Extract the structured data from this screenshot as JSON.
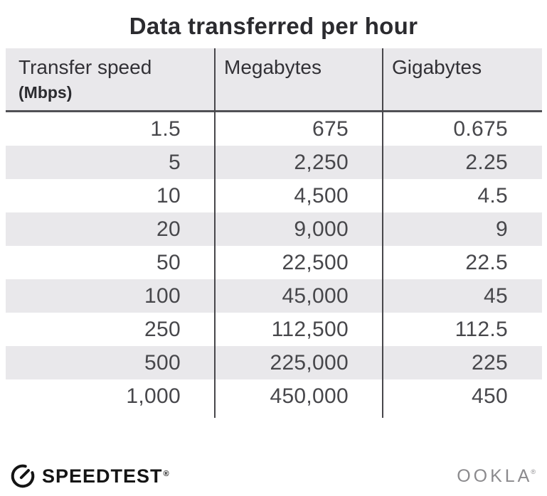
{
  "title": "Data transferred per hour",
  "table": {
    "columns": [
      {
        "label": "Transfer speed",
        "sublabel": "(Mbps)"
      },
      {
        "label": "Megabytes",
        "sublabel": ""
      },
      {
        "label": "Gigabytes",
        "sublabel": ""
      }
    ],
    "rows": [
      [
        "1.5",
        "675",
        "0.675"
      ],
      [
        "5",
        "2,250",
        "2.25"
      ],
      [
        "10",
        "4,500",
        "4.5"
      ],
      [
        "20",
        "9,000",
        "9"
      ],
      [
        "50",
        "22,500",
        "22.5"
      ],
      [
        "100",
        "45,000",
        "45"
      ],
      [
        "250",
        "112,500",
        "112.5"
      ],
      [
        "500",
        "225,000",
        "225"
      ],
      [
        "1,000",
        "450,000",
        "450"
      ]
    ]
  },
  "chart_data": {
    "type": "table",
    "title": "Data transferred per hour",
    "columns": [
      "Transfer speed (Mbps)",
      "Megabytes",
      "Gigabytes"
    ],
    "rows": [
      [
        1.5,
        675,
        0.675
      ],
      [
        5,
        2250,
        2.25
      ],
      [
        10,
        4500,
        4.5
      ],
      [
        20,
        9000,
        9
      ],
      [
        50,
        22500,
        22.5
      ],
      [
        100,
        45000,
        45
      ],
      [
        250,
        112500,
        112.5
      ],
      [
        500,
        225000,
        225
      ],
      [
        1000,
        450000,
        450
      ]
    ],
    "layout": {
      "row_striping": true,
      "numeric_alignment": "right",
      "grid": "vertical-dividers-only"
    }
  },
  "footer": {
    "brand": "SPEEDTEST",
    "brand_registered_mark": "®",
    "brand_icon": "speedtest-gauge-icon",
    "attribution": "OOKLA",
    "attribution_registered_mark": "®"
  },
  "colors": {
    "background": "#ffffff",
    "header_bg": "#e9e8eb",
    "stripe_bg": "#e9e8eb",
    "column_divider": "#48474b",
    "header_underline": "#515155",
    "title_text": "#2b2b2f",
    "number_text": "#47474b",
    "brand_black": "#141414",
    "ookla_gray": "#8b8a8d"
  }
}
